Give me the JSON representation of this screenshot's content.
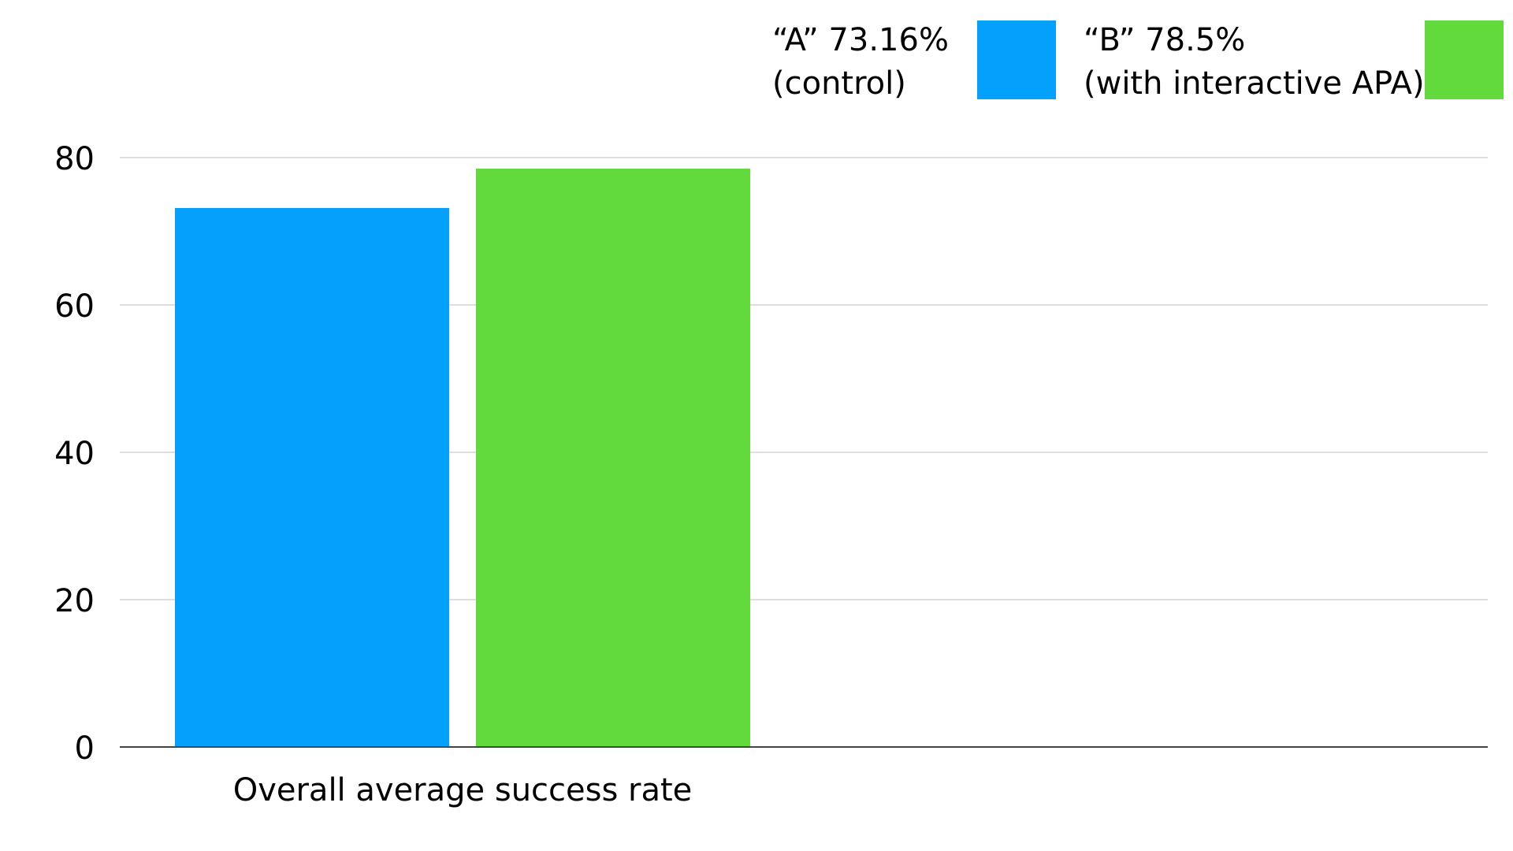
{
  "chart_data": {
    "type": "bar",
    "categories": [
      "Overall average success rate"
    ],
    "series": [
      {
        "name_line1": "“A” 73.16%",
        "name_line2": "(control)",
        "value": 73.16,
        "color": "#03A1FC"
      },
      {
        "name_line1": "“B” 78.5%",
        "name_line2": "(with interactive APA)",
        "value": 78.5,
        "color": "#62DA3C"
      }
    ],
    "yticks": [
      0,
      20,
      40,
      60,
      80
    ],
    "ylim": [
      0,
      80
    ],
    "grid": true,
    "legend_position": "top-right"
  }
}
